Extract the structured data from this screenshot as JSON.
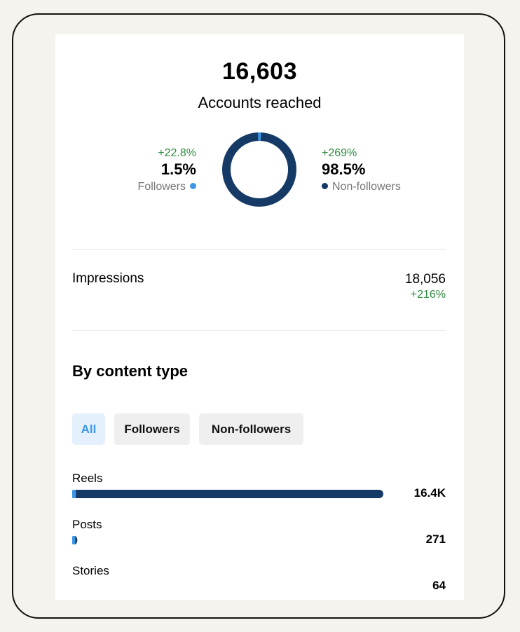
{
  "reach": {
    "accounts_reached": "16,603",
    "label": "Accounts reached"
  },
  "audience": {
    "followers": {
      "delta": "+22.8%",
      "percent": "1.5%",
      "label": "Followers",
      "value": 1.5,
      "color": "#3d97e4"
    },
    "non_followers": {
      "delta": "+269%",
      "percent": "98.5%",
      "label": "Non-followers",
      "value": 98.5,
      "color": "#163a66"
    }
  },
  "impressions": {
    "label": "Impressions",
    "value": "18,056",
    "delta": "+216%"
  },
  "content_type": {
    "title": "By content type",
    "filters": [
      {
        "label": "All",
        "active": true
      },
      {
        "label": "Followers",
        "active": false
      },
      {
        "label": "Non-followers",
        "active": false
      }
    ],
    "items": [
      {
        "label": "Reels",
        "value_text": "16.4K",
        "value": 16400,
        "follower_share": 0.012
      },
      {
        "label": "Posts",
        "value_text": "271",
        "value": 271,
        "follower_share": 0.6
      },
      {
        "label": "Stories",
        "value_text": "64",
        "value": 64,
        "follower_share": 0.5
      }
    ]
  },
  "colors": {
    "delta_positive": "#2e8b3e",
    "followers": "#3d97e4",
    "non_followers": "#163a66",
    "active_chip_bg": "#e4f1fc"
  }
}
